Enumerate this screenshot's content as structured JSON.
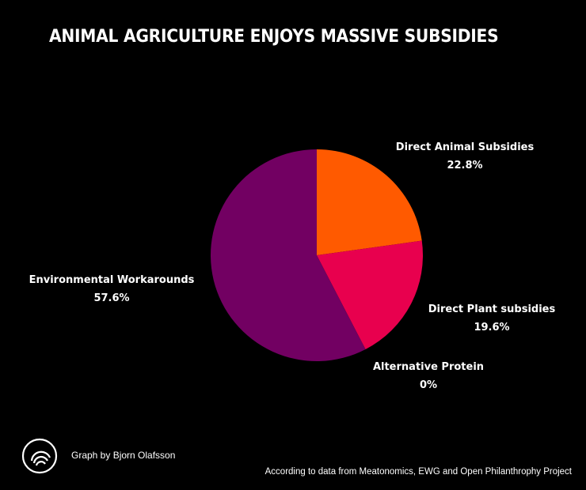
{
  "title": "ANIMAL AGRICULTURE ENJOYS MASSIVE SUBSIDIES",
  "credit": "Graph by Bjorn Olafsson",
  "source": "According to data from Meatonomics, EWG and Open Philanthrophy Project",
  "logo_icon": "concentric-circles-logo-icon",
  "chart_data": {
    "type": "pie",
    "title": "ANIMAL AGRICULTURE ENJOYS MASSIVE SUBSIDIES",
    "start_angle_deg": 0,
    "direction": "clockwise",
    "slices": [
      {
        "label": "Direct Animal Subsidies",
        "value": 22.8,
        "value_label": "22.8%",
        "color": "#ff5a00"
      },
      {
        "label": "Direct Plant subsidies",
        "value": 19.6,
        "value_label": "19.6%",
        "color": "#e8004e"
      },
      {
        "label": "Alternative Protein",
        "value": 0,
        "value_label": "0%",
        "color": "#ffffff"
      },
      {
        "label": "Environmental Workarounds",
        "value": 57.6,
        "value_label": "57.6%",
        "color": "#720062"
      }
    ]
  }
}
